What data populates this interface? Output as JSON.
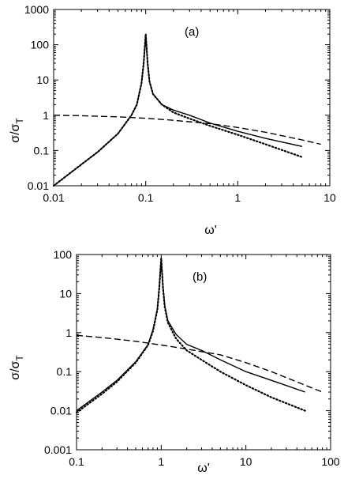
{
  "chart_data": [
    {
      "type": "line",
      "panel_label": "(a)",
      "xlabel": "ω'",
      "ylabel": {
        "main": "σ/σ",
        "sub": "T"
      },
      "xscale": "log",
      "yscale": "log",
      "xlim": [
        0.01,
        10
      ],
      "ylim": [
        0.01,
        1000
      ],
      "x_ticks": [
        0.01,
        0.1,
        1,
        10
      ],
      "x_tick_labels": [
        "0.01",
        "0.1",
        "1",
        "10"
      ],
      "y_ticks": [
        0.01,
        0.1,
        1,
        10,
        100,
        1000
      ],
      "y_tick_labels": [
        "0.01",
        "0.1",
        "1",
        "10",
        "100",
        "1000"
      ],
      "grid": false,
      "legend": "none",
      "series": [
        {
          "style": "solid",
          "x": [
            0.01,
            0.02,
            0.03,
            0.05,
            0.07,
            0.08,
            0.09,
            0.095,
            0.1,
            0.105,
            0.11,
            0.12,
            0.15,
            0.2,
            0.3,
            0.5,
            1,
            2,
            5
          ],
          "y": [
            0.01,
            0.04,
            0.09,
            0.3,
            1.0,
            2.0,
            8.0,
            30,
            200,
            30,
            9,
            4,
            2.0,
            1.4,
            1.0,
            0.6,
            0.35,
            0.22,
            0.13
          ]
        },
        {
          "style": "dotted",
          "x": [
            0.01,
            0.02,
            0.03,
            0.05,
            0.07,
            0.08,
            0.09,
            0.095,
            0.1,
            0.105,
            0.11,
            0.12,
            0.15,
            0.2,
            0.3,
            0.5,
            1,
            2,
            5
          ],
          "y": [
            0.01,
            0.04,
            0.09,
            0.3,
            1.0,
            2.0,
            8.0,
            30,
            200,
            30,
            9,
            4,
            2.0,
            1.2,
            0.8,
            0.5,
            0.28,
            0.15,
            0.065
          ]
        },
        {
          "style": "dashed",
          "x": [
            0.01,
            0.02,
            0.05,
            0.1,
            0.2,
            0.5,
            1,
            2,
            5,
            8
          ],
          "y": [
            1.0,
            0.97,
            0.9,
            0.82,
            0.72,
            0.58,
            0.45,
            0.33,
            0.2,
            0.15
          ]
        }
      ]
    },
    {
      "type": "line",
      "panel_label": "(b)",
      "xlabel": "ω'",
      "ylabel": {
        "main": "σ/σ",
        "sub": "T"
      },
      "xscale": "log",
      "yscale": "log",
      "xlim": [
        0.1,
        100
      ],
      "ylim": [
        0.001,
        100
      ],
      "x_ticks": [
        0.1,
        1,
        10,
        100
      ],
      "x_tick_labels": [
        "0.1",
        "1",
        "10",
        "100"
      ],
      "y_ticks": [
        0.001,
        0.01,
        0.1,
        1,
        10,
        100
      ],
      "y_tick_labels": [
        "0.001",
        "0.01",
        "0.1",
        "1",
        "10",
        "100"
      ],
      "grid": false,
      "legend": "none",
      "series": [
        {
          "style": "solid",
          "x": [
            0.1,
            0.2,
            0.3,
            0.5,
            0.7,
            0.8,
            0.9,
            0.95,
            1.0,
            1.05,
            1.1,
            1.2,
            1.5,
            2,
            3,
            5,
            10,
            20,
            50
          ],
          "y": [
            0.01,
            0.03,
            0.06,
            0.18,
            0.5,
            1.2,
            4,
            15,
            80,
            15,
            5,
            2,
            0.9,
            0.5,
            0.35,
            0.2,
            0.1,
            0.06,
            0.03
          ]
        },
        {
          "style": "dotted",
          "x": [
            0.1,
            0.2,
            0.3,
            0.5,
            0.7,
            0.8,
            0.9,
            0.95,
            1.0,
            1.05,
            1.1,
            1.2,
            1.5,
            2,
            3,
            5,
            10,
            20,
            50
          ],
          "y": [
            0.009,
            0.027,
            0.055,
            0.17,
            0.48,
            1.1,
            3.8,
            14,
            80,
            14,
            4.5,
            1.8,
            0.7,
            0.35,
            0.2,
            0.1,
            0.045,
            0.022,
            0.01
          ]
        },
        {
          "style": "dashed",
          "x": [
            0.1,
            0.2,
            0.5,
            1,
            2,
            5,
            10,
            20,
            50,
            80
          ],
          "y": [
            0.85,
            0.75,
            0.6,
            0.48,
            0.38,
            0.27,
            0.17,
            0.1,
            0.045,
            0.03
          ]
        }
      ]
    }
  ]
}
